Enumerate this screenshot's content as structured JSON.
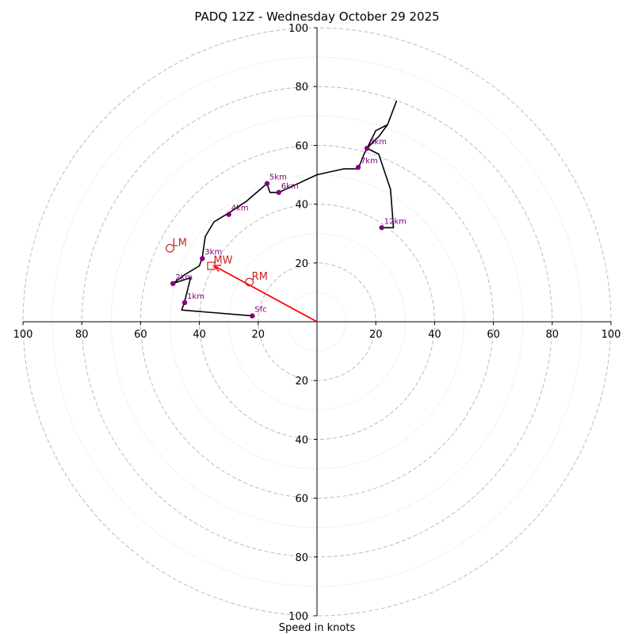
{
  "chart_data": {
    "type": "hodograph",
    "title": "PADQ 12Z - Wednesday October 29 2025",
    "xlabel": "Speed in knots",
    "axis_range": [
      -100,
      100
    ],
    "tick_labels": [
      "100",
      "80",
      "60",
      "40",
      "20",
      "20",
      "40",
      "60",
      "80",
      "100"
    ],
    "y_tick_labels": [
      "100",
      "80",
      "60",
      "40",
      "20",
      "20",
      "40",
      "60",
      "80",
      "100"
    ],
    "ring_major": [
      20,
      40,
      60,
      80,
      100
    ],
    "ring_minor": [
      10,
      30,
      50,
      70,
      90
    ],
    "grid": true,
    "trace": [
      [
        -22,
        2
      ],
      [
        -46,
        4
      ],
      [
        -45,
        7
      ],
      [
        -43,
        15
      ],
      [
        -49,
        13
      ],
      [
        -45,
        16
      ],
      [
        -40,
        19
      ],
      [
        -39,
        22
      ],
      [
        -38,
        29
      ],
      [
        -35,
        34
      ],
      [
        -30,
        37
      ],
      [
        -24,
        41
      ],
      [
        -17,
        47
      ],
      [
        -16,
        44
      ],
      [
        -13,
        44
      ],
      [
        0,
        50
      ],
      [
        9,
        52
      ],
      [
        14,
        52
      ],
      [
        16,
        57
      ],
      [
        17,
        59
      ],
      [
        21,
        63
      ],
      [
        24,
        67
      ],
      [
        27,
        75
      ],
      [
        24,
        67
      ],
      [
        20,
        65
      ],
      [
        17,
        59
      ],
      [
        21,
        57
      ],
      [
        25,
        45
      ],
      [
        26,
        32
      ],
      [
        22,
        32
      ]
    ],
    "height_markers": [
      {
        "label": "Sfc",
        "u": -22,
        "v": 2
      },
      {
        "label": "1km",
        "u": -45,
        "v": 6.5
      },
      {
        "label": "2km",
        "u": -49,
        "v": 13
      },
      {
        "label": "3km",
        "u": -39,
        "v": 21.5
      },
      {
        "label": "4km",
        "u": -30,
        "v": 36.5
      },
      {
        "label": "5km",
        "u": -17,
        "v": 47
      },
      {
        "label": "6km",
        "u": -13,
        "v": 44
      },
      {
        "label": "7km",
        "u": 14,
        "v": 52.5
      },
      {
        "label": "8km",
        "u": 17,
        "v": 59
      },
      {
        "label": "12km",
        "u": 22,
        "v": 32
      }
    ],
    "storm_motion": {
      "LM": {
        "label": "LM",
        "u": -50,
        "v": 25
      },
      "RM": {
        "label": "RM",
        "u": -23,
        "v": 13.5
      },
      "MW": {
        "label": "MW",
        "u": -36,
        "v": 19
      }
    },
    "shear_vector": {
      "from": [
        0,
        0
      ],
      "to": [
        -35,
        19
      ]
    },
    "colors": {
      "trace": "#000000",
      "marker": "#800080",
      "storm": "#cc2222",
      "vector": "#ff0000",
      "grid": "#bbbbbb"
    }
  }
}
